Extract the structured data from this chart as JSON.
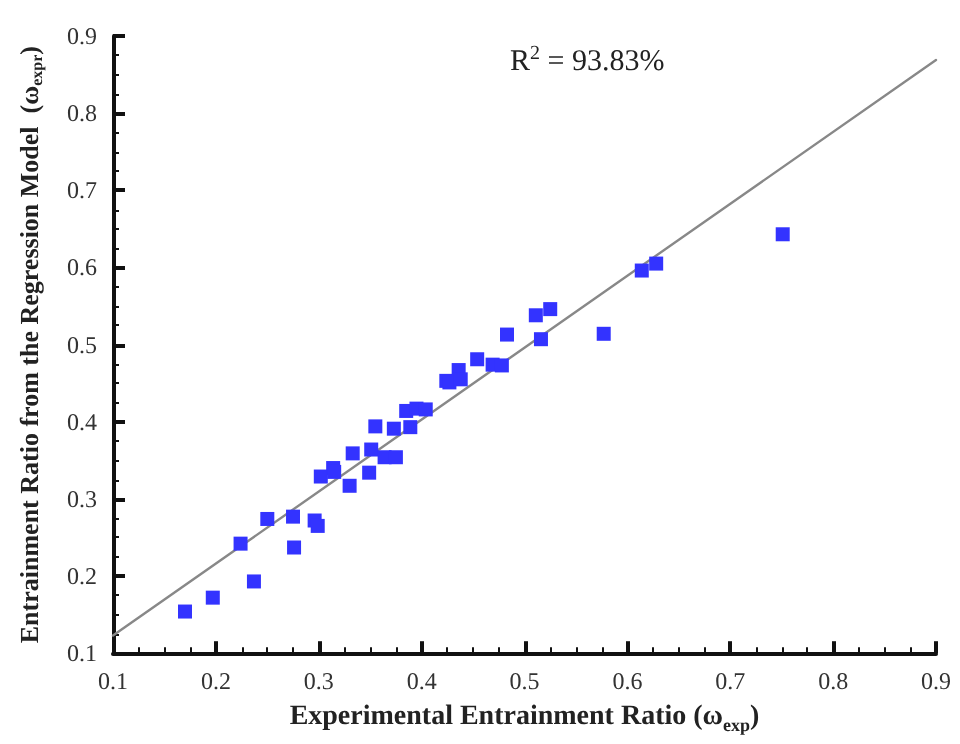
{
  "chart_data": {
    "type": "scatter",
    "xlabel": "Experimental Entrainment Ratio (ω$_{exp}$)",
    "ylabel": "Entrainment Ratio from the Regression Model  (ω$_{expr}$)",
    "annotations": [
      "R$^{2}$ = 93.83%"
    ],
    "xlim": [
      0.1,
      0.9
    ],
    "ylim": [
      0.1,
      0.9
    ],
    "xticks": [
      0.1,
      0.2,
      0.3,
      0.4,
      0.5,
      0.6,
      0.7,
      0.8,
      0.9
    ],
    "yticks": [
      0.1,
      0.2,
      0.3,
      0.4,
      0.5,
      0.6,
      0.7,
      0.8,
      0.9
    ],
    "grid": false,
    "marker": "square",
    "series": [
      {
        "type": "scatter",
        "color": "#3333ff",
        "x": [
          0.17,
          0.197,
          0.224,
          0.237,
          0.25,
          0.275,
          0.276,
          0.296,
          0.299,
          0.302,
          0.314,
          0.315,
          0.33,
          0.333,
          0.349,
          0.351,
          0.355,
          0.364,
          0.373,
          0.375,
          0.385,
          0.389,
          0.395,
          0.404,
          0.424,
          0.427,
          0.436,
          0.438,
          0.454,
          0.469,
          0.478,
          0.483,
          0.511,
          0.516,
          0.525,
          0.577,
          0.614,
          0.628,
          0.751
        ],
        "values": [
          0.154,
          0.172,
          0.242,
          0.193,
          0.274,
          0.277,
          0.237,
          0.272,
          0.265,
          0.329,
          0.34,
          0.335,
          0.317,
          0.359,
          0.334,
          0.364,
          0.394,
          0.354,
          0.391,
          0.354,
          0.414,
          0.393,
          0.417,
          0.416,
          0.453,
          0.451,
          0.467,
          0.455,
          0.481,
          0.474,
          0.473,
          0.513,
          0.538,
          0.507,
          0.546,
          0.514,
          0.596,
          0.605,
          0.643
        ]
      },
      {
        "type": "line",
        "color": "#888888",
        "marker": "none",
        "line_style": "solid",
        "x": [
          0.1,
          0.9
        ],
        "values": [
          0.123,
          0.869
        ]
      }
    ]
  }
}
